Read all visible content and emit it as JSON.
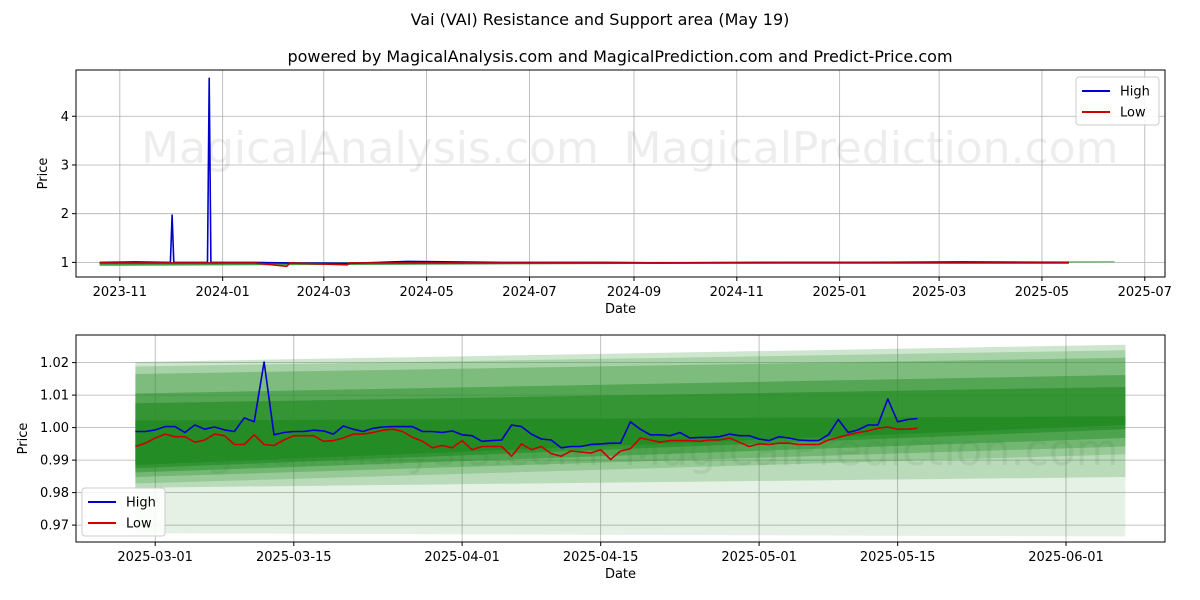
{
  "title": "Vai (VAI) Resistance and Support area (May 19)",
  "subtitle": "powered by MagicalAnalysis.com and MagicalPrediction.com and Predict-Price.com",
  "watermark": {
    "left": "MagicalAnalysis.com",
    "right": "MagicalPrediction.com"
  },
  "colors": {
    "high": "#0000cc",
    "low": "#cc0000",
    "band": "#228b22",
    "grid": "#b0b0b0",
    "axes": "#000000"
  },
  "chart_data": [
    {
      "type": "line",
      "panel": "top",
      "xlabel": "Date",
      "ylabel": "Price",
      "x_range": [
        "2023-10-06",
        "2025-07-13"
      ],
      "ylim": [
        0.7,
        4.95
      ],
      "grid": true,
      "legend_position": "top-right",
      "x_ticks": [
        "2023-11",
        "2024-01",
        "2024-03",
        "2024-05",
        "2024-07",
        "2024-09",
        "2024-11",
        "2025-01",
        "2025-03",
        "2025-05",
        "2025-07"
      ],
      "y_ticks": [
        "1",
        "2",
        "3",
        "4"
      ],
      "series": [
        {
          "name": "High",
          "color": "#0000cc",
          "points": [
            [
              "2023-10-20",
              1.0
            ],
            [
              "2023-11-10",
              1.01
            ],
            [
              "2023-12-01",
              1.0
            ],
            [
              "2023-12-02",
              1.97
            ],
            [
              "2023-12-03",
              1.0
            ],
            [
              "2023-12-23",
              1.0
            ],
            [
              "2023-12-24",
              4.78
            ],
            [
              "2023-12-25",
              1.0
            ],
            [
              "2024-01-20",
              1.0
            ],
            [
              "2024-02-08",
              0.99
            ],
            [
              "2024-03-15",
              0.98
            ],
            [
              "2024-04-20",
              1.02
            ],
            [
              "2024-06-15",
              1.0
            ],
            [
              "2024-08-15",
              1.0
            ],
            [
              "2024-09-15",
              0.99
            ],
            [
              "2024-11-15",
              1.0
            ],
            [
              "2025-01-15",
              1.0
            ],
            [
              "2025-03-15",
              1.01
            ],
            [
              "2025-05-17",
              1.0
            ]
          ]
        },
        {
          "name": "Low",
          "color": "#cc0000",
          "points": [
            [
              "2023-10-20",
              0.99
            ],
            [
              "2023-12-01",
              0.99
            ],
            [
              "2024-01-20",
              0.99
            ],
            [
              "2024-02-08",
              0.92
            ],
            [
              "2024-02-10",
              0.99
            ],
            [
              "2024-03-15",
              0.95
            ],
            [
              "2024-03-16",
              0.99
            ],
            [
              "2024-06-15",
              0.99
            ],
            [
              "2024-09-15",
              0.99
            ],
            [
              "2024-12-15",
              0.99
            ],
            [
              "2025-03-15",
              0.99
            ],
            [
              "2025-05-17",
              0.99
            ]
          ]
        }
      ],
      "band": {
        "x": [
          "2023-10-20",
          "2025-06-13"
        ],
        "low": [
          0.93,
          1.0
        ],
        "high": [
          1.0,
          1.02
        ]
      }
    },
    {
      "type": "line",
      "panel": "bottom",
      "xlabel": "Date",
      "ylabel": "Price",
      "x_range": [
        "2025-02-21",
        "2025-06-11"
      ],
      "ylim": [
        0.9648,
        1.0285
      ],
      "grid": true,
      "legend_position": "bottom-left",
      "x_ticks": [
        "2025-03-01",
        "2025-03-15",
        "2025-04-01",
        "2025-04-15",
        "2025-05-01",
        "2025-05-15",
        "2025-06-01"
      ],
      "y_ticks": [
        "0.97",
        "0.98",
        "0.99",
        "1.00",
        "1.01",
        "1.02"
      ],
      "start_date": "2025-02-27",
      "series": [
        {
          "name": "High",
          "color": "#0000cc",
          "values": [
            0.9988,
            0.9988,
            0.9993,
            1.0003,
            1.0003,
            0.9985,
            1.0008,
            0.9995,
            1.0002,
            0.9993,
            0.9988,
            1.003,
            1.0018,
            1.0202,
            0.9978,
            0.9985,
            0.9988,
            0.9988,
            0.9992,
            0.999,
            0.998,
            1.0005,
            0.9995,
            0.9988,
            0.9998,
            1.0002,
            1.0003,
            1.0003,
            1.0003,
            0.9988,
            0.9988,
            0.9985,
            0.999,
            0.9978,
            0.9975,
            0.9958,
            0.996,
            0.9962,
            1.0008,
            1.0003,
            0.998,
            0.9965,
            0.9962,
            0.9938,
            0.9942,
            0.9942,
            0.9948,
            0.995,
            0.9952,
            0.9952,
            1.0018,
            0.9995,
            0.9978,
            0.9978,
            0.9975,
            0.9985,
            0.9968,
            0.997,
            0.997,
            0.9972,
            0.998,
            0.9975,
            0.9975,
            0.9965,
            0.996,
            0.9972,
            0.9968,
            0.9962,
            0.996,
            0.996,
            0.9978,
            1.0025,
            0.9985,
            0.9993,
            1.0008,
            1.0008,
            1.0088,
            1.0018,
            1.0025,
            1.0028
          ]
        },
        {
          "name": "Low",
          "color": "#cc0000",
          "values": [
            0.9942,
            0.9952,
            0.9968,
            0.998,
            0.9972,
            0.9972,
            0.9955,
            0.9962,
            0.998,
            0.9975,
            0.9948,
            0.9948,
            0.9978,
            0.9948,
            0.9945,
            0.9962,
            0.9975,
            0.9975,
            0.9975,
            0.9958,
            0.996,
            0.9968,
            0.998,
            0.998,
            0.9985,
            0.9992,
            0.9995,
            0.9988,
            0.997,
            0.9958,
            0.9938,
            0.9945,
            0.9938,
            0.996,
            0.9932,
            0.9942,
            0.9942,
            0.9942,
            0.9912,
            0.995,
            0.9932,
            0.9942,
            0.992,
            0.9912,
            0.9928,
            0.9925,
            0.9922,
            0.9932,
            0.9902,
            0.9928,
            0.9935,
            0.9968,
            0.9962,
            0.9955,
            0.996,
            0.996,
            0.996,
            0.9958,
            0.9962,
            0.9962,
            0.9968,
            0.9955,
            0.9942,
            0.995,
            0.9948,
            0.9952,
            0.9952,
            0.9948,
            0.9948,
            0.9948,
            0.9962,
            0.997,
            0.9978,
            0.9985,
            0.999,
            0.9998,
            1.0002,
            0.9995,
            0.9995,
            0.9998
          ]
        }
      ],
      "bands": {
        "x": [
          "2025-02-27",
          "2025-06-07"
        ],
        "layers": [
          {
            "low": [
              0.9675,
              0.9665
            ],
            "high": [
              0.9952,
              0.9998
            ],
            "opacity": 0.12
          },
          {
            "low": [
              0.9815,
              0.9848
            ],
            "high": [
              1.0202,
              1.0255
            ],
            "opacity": 0.22
          },
          {
            "low": [
              0.9828,
              0.9918
            ],
            "high": [
              1.0188,
              1.0238
            ],
            "opacity": 0.22
          },
          {
            "low": [
              0.9848,
              0.9942
            ],
            "high": [
              1.0165,
              1.0215
            ],
            "opacity": 0.3
          },
          {
            "low": [
              0.9862,
              0.9968
            ],
            "high": [
              1.0105,
              1.0162
            ],
            "opacity": 0.45
          },
          {
            "low": [
              0.9875,
              0.9995
            ],
            "high": [
              1.0075,
              1.0125
            ],
            "opacity": 0.6
          },
          {
            "low": [
              0.9885,
              1.0008
            ],
            "high": [
              1.0022,
              1.0035
            ],
            "opacity": 0.85
          }
        ]
      }
    }
  ]
}
